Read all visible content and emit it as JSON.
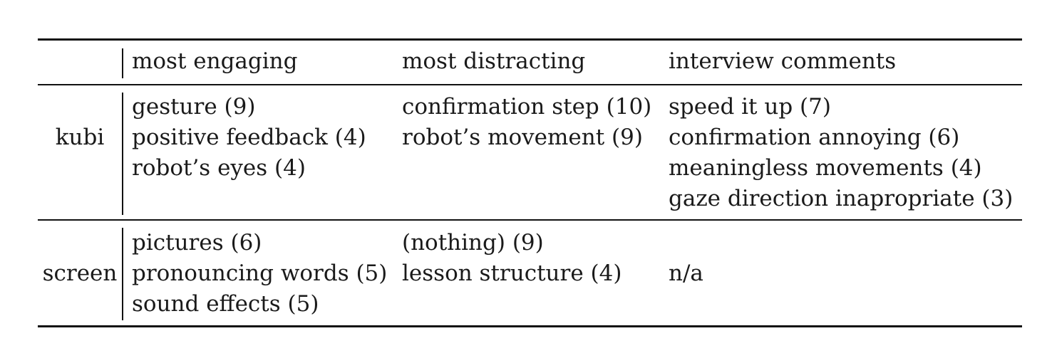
{
  "table": {
    "headers": [
      "",
      "most engaging",
      "most distracting",
      "interview comments"
    ],
    "rows": [
      {
        "label": "kubi",
        "engaging": [
          "gesture (9)",
          "positive feedback (4)",
          "robot’s eyes (4)"
        ],
        "distracting": [
          "confirmation step (10)",
          "robot’s movement (9)"
        ],
        "comments": [
          "speed it up (7)",
          "confirmation annoying (6)",
          "meaningless movements (4)",
          "gaze direction inapropriate (3)"
        ]
      },
      {
        "label": "screen",
        "engaging": [
          "pictures (6)",
          "pronouncing words (5)",
          "sound effects (5)"
        ],
        "distracting": [
          "(nothing) (9)",
          "lesson structure (4)"
        ],
        "comments": [
          "n/a"
        ]
      }
    ]
  }
}
